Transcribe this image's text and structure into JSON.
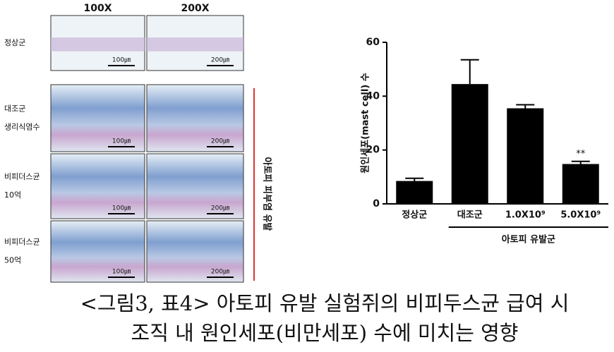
{
  "figure": {
    "col_headers": [
      "100X",
      "200X"
    ],
    "rows": [
      [
        "정상군"
      ],
      [
        "대조군",
        "생리식염수"
      ],
      [
        "비피더스균",
        "10억"
      ],
      [
        "비피더스균",
        "50억"
      ]
    ],
    "scale_labels": [
      "100㎛",
      "200㎛"
    ],
    "side_label": "아토피 피부염 유발"
  },
  "chart_data": {
    "type": "bar",
    "y_label": "원인세포(mast cell) 수",
    "categories": [
      "정상군",
      "대조군",
      "1.0X10⁹",
      "5.0X10⁹"
    ],
    "values": [
      8.5,
      44.5,
      35.5,
      14.8
    ],
    "errors": [
      1,
      9,
      1.3,
      1
    ],
    "color": "#000000",
    "ylim": [
      0,
      60
    ],
    "yticks": [
      0,
      20,
      40,
      60
    ],
    "annotations": [
      {
        "category": 3,
        "text": "**"
      }
    ],
    "group_label": "아토피 유발군"
  },
  "caption": [
    "<그림3, 표4> 아토피 유발 실험쥐의 비피두스균 급여 시",
    "조직 내 원인세포(비만세포) 수에 미치는 영향"
  ]
}
